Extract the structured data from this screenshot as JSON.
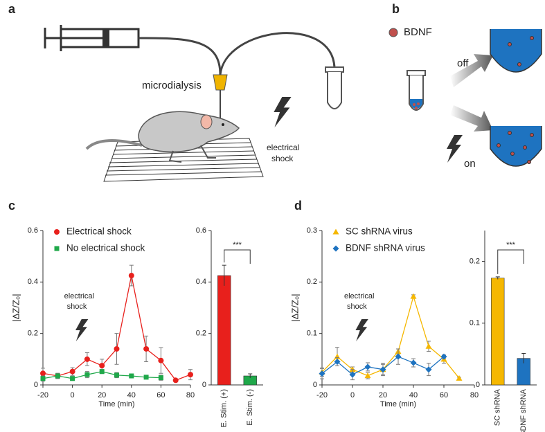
{
  "figure": {
    "panels": [
      "a",
      "b",
      "c",
      "d"
    ],
    "a": {
      "microdialysis": "microdialysis",
      "shock": [
        "electrical",
        "shock"
      ]
    },
    "b": {
      "legend": "BDNF",
      "off": "off",
      "on": "on"
    }
  },
  "chart_data": [
    {
      "type": "line",
      "xlabel": "Time (min)",
      "ylabel": "|ΔZ/Z₀|",
      "x": [
        -20,
        -10,
        0,
        10,
        20,
        30,
        40,
        50,
        60,
        70,
        80
      ],
      "xlim": [
        -20,
        80
      ],
      "xticks": [
        -20,
        0,
        20,
        40,
        60,
        80
      ],
      "ylim": [
        0,
        0.6
      ],
      "yticks": [
        0,
        0.2,
        0.4,
        0.6
      ],
      "legend": "upper left",
      "annotation": {
        "text": [
          "electrical",
          "shock"
        ],
        "x": 0
      },
      "series": [
        {
          "name": "Electrical shock",
          "color": "#e8201c",
          "marker": "circle",
          "values": [
            0.045,
            0.035,
            0.052,
            0.1,
            0.075,
            0.14,
            0.425,
            0.14,
            0.095,
            0.018,
            0.04
          ],
          "errors": [
            0.02,
            0.01,
            0.015,
            0.025,
            0.025,
            0.06,
            0.04,
            0.05,
            0.05,
            0.005,
            0.02
          ]
        },
        {
          "name": "No electrical shock",
          "color": "#1fa84a",
          "marker": "square",
          "values": [
            0.025,
            0.035,
            0.025,
            0.04,
            0.052,
            0.038,
            0.035,
            0.03,
            0.028,
            null,
            null
          ],
          "errors": [
            0.01,
            0.01,
            0.008,
            0.012,
            0.008,
            0.01,
            0.005,
            0.005,
            0.01,
            null,
            null
          ]
        }
      ]
    },
    {
      "type": "bar",
      "categories": [
        "E. Stim. (+)",
        "E. Stim. (-)"
      ],
      "values": [
        0.425,
        0.035
      ],
      "errors": [
        0.04,
        0.008
      ],
      "colors": [
        "#e8201c",
        "#1fa84a"
      ],
      "ylim": [
        0,
        0.6
      ],
      "yticks": [
        0,
        0.2,
        0.4,
        0.6
      ],
      "annotation": "***"
    },
    {
      "type": "line",
      "xlabel": "Time (min)",
      "ylabel": "|ΔZ/Z₀|",
      "x": [
        -20,
        -10,
        0,
        10,
        20,
        30,
        40,
        50,
        60,
        70
      ],
      "xlim": [
        -20,
        80
      ],
      "xticks": [
        -20,
        0,
        20,
        40,
        60,
        80
      ],
      "ylim": [
        0,
        0.3
      ],
      "yticks": [
        0,
        0.1,
        0.2,
        0.3
      ],
      "legend": "upper left",
      "annotation": {
        "text": [
          "electrical",
          "shock"
        ],
        "x": 0
      },
      "series": [
        {
          "name": "SC shRNA virus",
          "color": "#f5b700",
          "marker": "triangle",
          "values": [
            0.025,
            0.055,
            0.03,
            0.018,
            0.03,
            0.065,
            0.172,
            0.075,
            0.05,
            0.013
          ],
          "errors": [
            0.008,
            0.018,
            0.005,
            0.006,
            0.01,
            0.005,
            0.003,
            0.01,
            0.008,
            0.002
          ]
        },
        {
          "name": "BDNF shRNA virus",
          "color": "#1e73c0",
          "marker": "diamond",
          "values": [
            0.022,
            0.045,
            0.02,
            0.035,
            0.03,
            0.055,
            0.043,
            0.03,
            0.055,
            null
          ],
          "errors": [
            0.01,
            0.008,
            0.01,
            0.008,
            0.012,
            0.015,
            0.008,
            0.012,
            0.003,
            null
          ]
        }
      ]
    },
    {
      "type": "bar",
      "categories": [
        "SC shRNA",
        "BDNF shRNA"
      ],
      "values": [
        0.173,
        0.043
      ],
      "errors": [
        0.002,
        0.008
      ],
      "colors": [
        "#f5b700",
        "#1e73c0"
      ],
      "ylim": [
        0,
        0.25
      ],
      "yticks": [
        0,
        0.1,
        0.2
      ],
      "annotation": "***"
    }
  ]
}
